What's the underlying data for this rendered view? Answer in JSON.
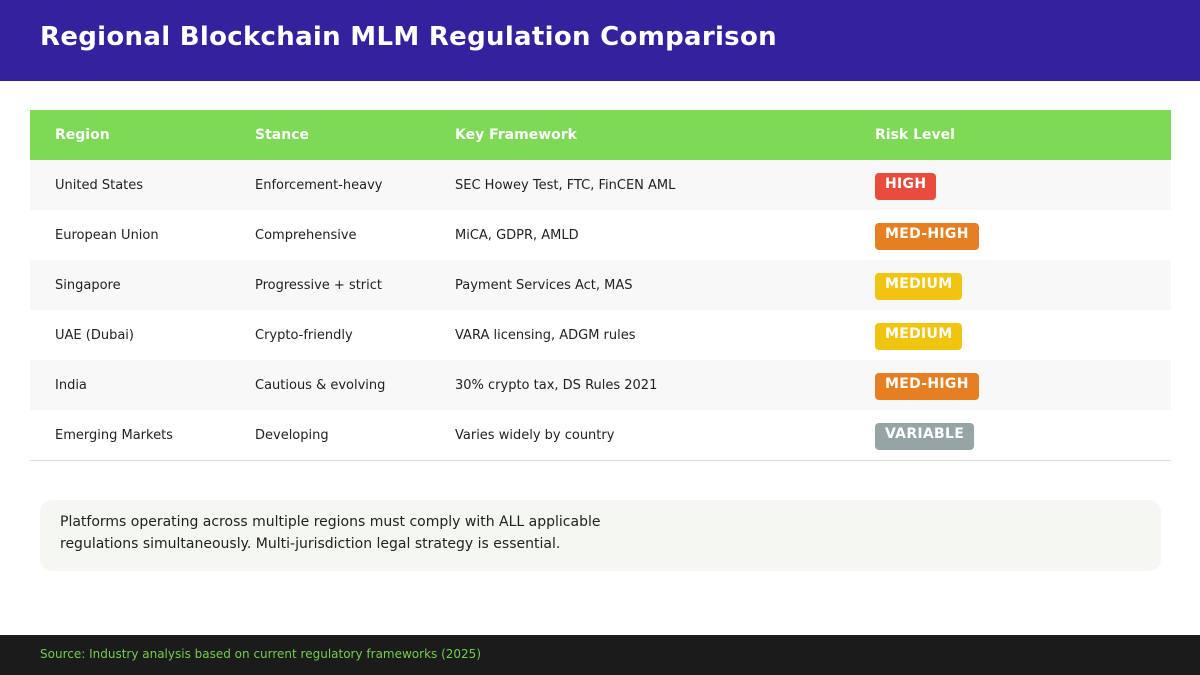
{
  "header": {
    "title": "Regional Blockchain MLM Regulation Comparison"
  },
  "table": {
    "columns": [
      "Region",
      "Stance",
      "Key Framework",
      "Risk Level"
    ],
    "rows": [
      {
        "region": "United States",
        "stance": "Enforcement-heavy",
        "framework": "SEC Howey Test, FTC, FinCEN AML",
        "risk": "HIGH",
        "risk_color": "#e74c3c"
      },
      {
        "region": "European Union",
        "stance": "Comprehensive",
        "framework": "MiCA, GDPR, AMLD",
        "risk": "MED-HIGH",
        "risk_color": "#e67e22"
      },
      {
        "region": "Singapore",
        "stance": "Progressive + strict",
        "framework": "Payment Services Act, MAS",
        "risk": "MEDIUM",
        "risk_color": "#f1c40f"
      },
      {
        "region": "UAE (Dubai)",
        "stance": "Crypto-friendly",
        "framework": "VARA licensing, ADGM rules",
        "risk": "MEDIUM",
        "risk_color": "#f1c40f"
      },
      {
        "region": "India",
        "stance": "Cautious & evolving",
        "framework": "30% crypto tax, DS Rules 2021",
        "risk": "MED-HIGH",
        "risk_color": "#e67e22"
      },
      {
        "region": "Emerging Markets",
        "stance": "Developing",
        "framework": "Varies widely by country",
        "risk": "VARIABLE",
        "risk_color": "#95a5a6"
      }
    ]
  },
  "note": {
    "text": "Platforms operating across multiple regions must comply with ALL applicable regulations simultaneously. Multi-jurisdiction legal strategy is essential."
  },
  "footer": {
    "source": "Source: Industry analysis based on current regulatory frameworks (2025)"
  },
  "colors": {
    "header_bg": "#33219e",
    "table_header_bg": "#7ed957",
    "footer_bg": "#1b1b1b",
    "source_text": "#6fcf4a"
  }
}
